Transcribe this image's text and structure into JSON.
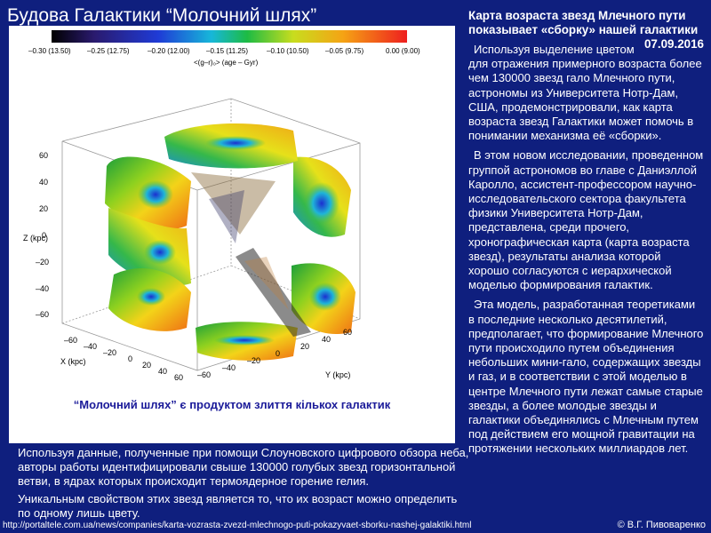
{
  "slide": {
    "title": "Будова Галактики “Молочний шлях”"
  },
  "figure": {
    "colorbar_ticks": [
      "–0.30 (13.50)",
      "–0.25 (12.75)",
      "–0.20 (12.00)",
      "–0.15 (11.25)",
      "–0.10 (10.50)",
      "–0.05 (9.75)",
      "0.00 (9.00)"
    ],
    "colorbar_label": "<(g–r)₀> (age – Gyr)",
    "z_axis_label": "Z (kpc)",
    "z_ticks": [
      "60",
      "40",
      "20",
      "0",
      "–20",
      "–40",
      "–60"
    ],
    "x_axis_label": "X (kpc)",
    "x_ticks": [
      "–60",
      "–40",
      "–20",
      "0",
      "20",
      "40",
      "60"
    ],
    "y_axis_label": "Y (kpc)",
    "y_ticks": [
      "–60",
      "–40",
      "–20",
      "0",
      "20",
      "40",
      "60"
    ],
    "caption": "“Молочний шлях” є продуктом злиття кількох галактик",
    "colors": {
      "colorbar": [
        "#000000",
        "#3a1e7a",
        "#1f3bd6",
        "#17b7d9",
        "#1dbb44",
        "#c8dd1e",
        "#f5a314",
        "#ee1f1f"
      ]
    }
  },
  "right": {
    "title": "Карта возраста звезд Млечного пути показывает «сборку» нашей галактики",
    "date": "07.09.2016",
    "paragraphs": [
      "Используя выделение цветом для отражения примерного возраста более чем 130000 звезд гало Млечного пути, астрономы из Университета Нотр-Дам, США, продемонстрировали, как карта возраста звезд Галактики может помочь в понимании механизма её «сборки».",
      "В этом новом исследовании, проведенном группой астрономов во главе с Даниэллой Каролло, ассистент-профессором научно-исследовательского сектора факультета физики Университета Нотр-Дам, представлена, среди прочего, хронографическая карта (карта возраста звезд), результаты анализа которой хорошо согласуются с иерархической моделью формирования галактик.",
      "Эта модель, разработанная теоретиками в последние несколько десятилетий, предполагает, что формирование Млечного пути происходило путем объединения небольших мини-гало, содержащих звезды и газ, и в соответствии с этой моделью в центре Млечного пути лежат самые старые звезды, а более молодые звезды и галактики объединялись с Млечным путем под действием его мощной гравитации на протяжении нескольких миллиардов лет."
    ]
  },
  "bottom": {
    "paragraphs": [
      "Используя данные, полученные при помощи Слоуновского цифрового обзора неба, авторы работы идентифицировали свыше 130000 голубых звезд горизонтальной ветви, в ядрах которых происходит термоядерное горение гелия.",
      "Уникальным свойством этих звезд является то, что их возраст можно определить по одному лишь цвету."
    ]
  },
  "footer": {
    "url": "http://portaltele.com.ua/news/companies/karta-vozrasta-zvezd-mlechnogo-puti-pokazyvaet-sborku-nashej-galaktiki.html",
    "copyright": "© В.Г. Пивоваренко"
  }
}
